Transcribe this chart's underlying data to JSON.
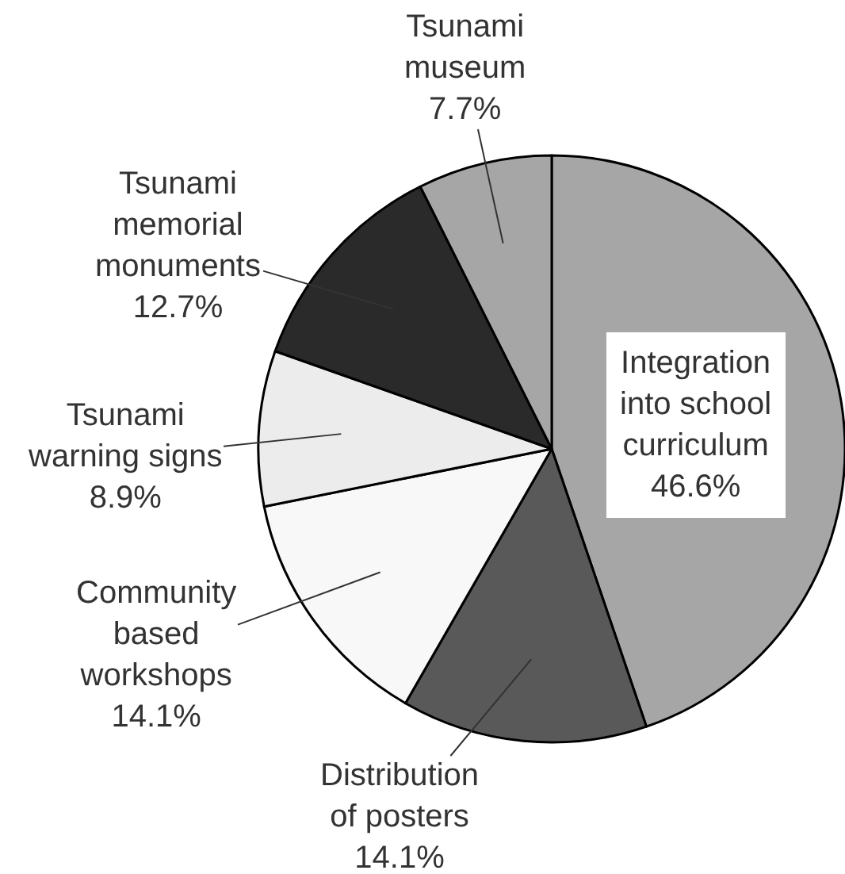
{
  "chart_data": {
    "type": "pie",
    "categories": [
      "Integration\ninto school\ncurriculum",
      "Distribution\nof posters",
      "Community\nbased\nworkshops",
      "Tsunami\nwarning signs",
      "Tsunami\nmemorial\nmonuments",
      "Tsunami\nmuseum"
    ],
    "values": [
      46.6,
      14.1,
      14.1,
      8.9,
      12.7,
      7.7
    ],
    "value_labels": [
      "46.6%",
      "14.1%",
      "14.1%",
      "8.9%",
      "12.7%",
      "7.7%"
    ],
    "colors": [
      "#a6a6a6",
      "#595959",
      "#f8f8f8",
      "#ececec",
      "#2a2a2a",
      "#a6a6a6"
    ],
    "legend": false
  }
}
